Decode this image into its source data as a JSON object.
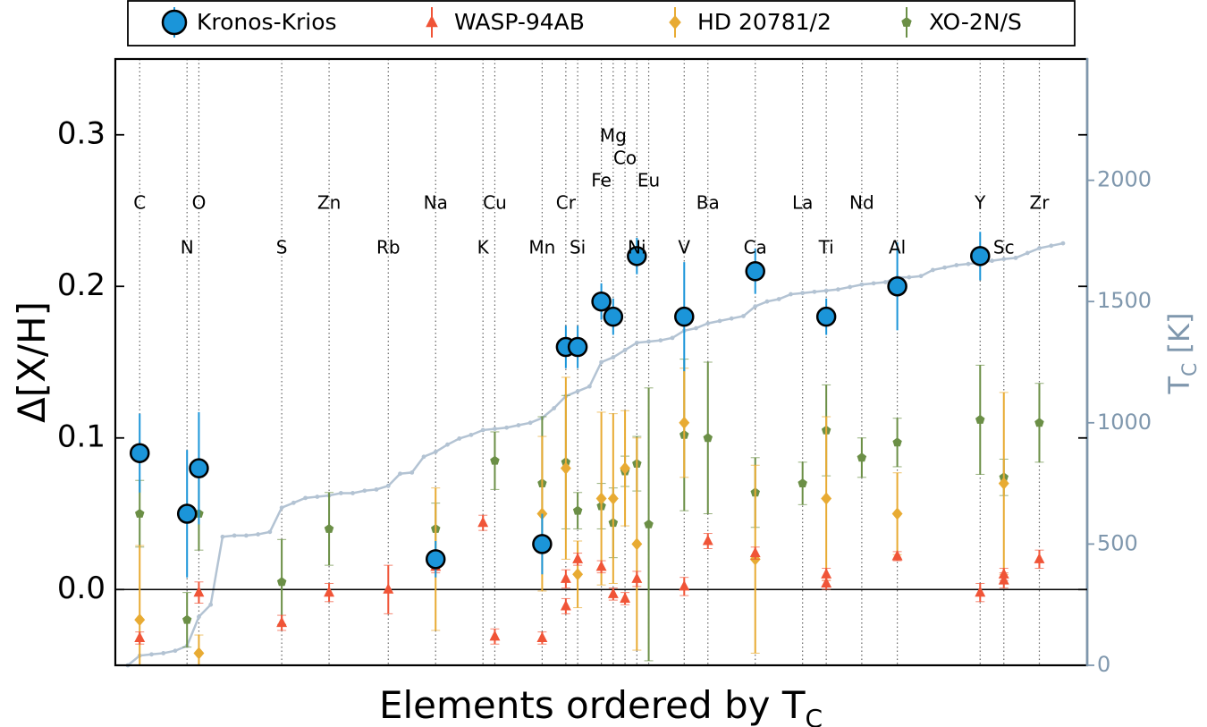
{
  "chart_data": {
    "type": "scatter",
    "xlabel_main": "Elements ordered by T",
    "xlabel_sub": "C",
    "ylabel": "Δ[X/H]",
    "y2label_main": "T",
    "y2label_sub": "C",
    "y2label_unit": " [K]",
    "ylim": [
      -0.05,
      0.35
    ],
    "y_ticks": [
      0.0,
      0.1,
      0.2,
      0.3
    ],
    "y_tick_labels": [
      "0.0",
      "0.1",
      "0.2",
      "0.3"
    ],
    "y2lim": [
      0,
      2500
    ],
    "y2_ticks": [
      0,
      500,
      1000,
      1500,
      2000
    ],
    "y2_tick_labels": [
      "0",
      "500",
      "1000",
      "1500",
      "2000"
    ],
    "legend_position": "top",
    "elements": [
      {
        "name": "C",
        "x": 2,
        "row": 1
      },
      {
        "name": "N",
        "x": 6,
        "row": 2
      },
      {
        "name": "O",
        "x": 7,
        "row": 1
      },
      {
        "name": "S",
        "x": 14,
        "row": 2
      },
      {
        "name": "Zn",
        "x": 18,
        "row": 1
      },
      {
        "name": "Rb",
        "x": 23,
        "row": 2
      },
      {
        "name": "Na",
        "x": 27,
        "row": 1
      },
      {
        "name": "K",
        "x": 31,
        "row": 2
      },
      {
        "name": "Cu",
        "x": 32,
        "row": 1
      },
      {
        "name": "Mn",
        "x": 36,
        "row": 2
      },
      {
        "name": "Cr",
        "x": 38,
        "row": 1
      },
      {
        "name": "Si",
        "x": 39,
        "row": 2
      },
      {
        "name": "Fe",
        "x": 41,
        "row": 0.5
      },
      {
        "name": "Mg",
        "x": 42,
        "row": -0.5
      },
      {
        "name": "Co",
        "x": 43,
        "row": 0
      },
      {
        "name": "Ni",
        "x": 44,
        "row": 2
      },
      {
        "name": "Eu",
        "x": 45,
        "row": 0.5
      },
      {
        "name": "V",
        "x": 48,
        "row": 2
      },
      {
        "name": "Ba",
        "x": 50,
        "row": 1
      },
      {
        "name": "Ca",
        "x": 54,
        "row": 2
      },
      {
        "name": "La",
        "x": 58,
        "row": 1
      },
      {
        "name": "Ti",
        "x": 60,
        "row": 2
      },
      {
        "name": "Nd",
        "x": 63,
        "row": 1
      },
      {
        "name": "Al",
        "x": 66,
        "row": 2
      },
      {
        "name": "Y",
        "x": 73,
        "row": 1
      },
      {
        "name": "Sc",
        "x": 75,
        "row": 2
      },
      {
        "name": "Zr",
        "x": 78,
        "row": 1
      }
    ],
    "tc_curve": {
      "color": "#b3c3d3",
      "x": [
        1,
        2,
        3,
        4,
        5,
        6,
        7,
        8,
        9,
        10,
        11,
        12,
        13,
        14,
        15,
        16,
        17,
        18,
        19,
        20,
        21,
        22,
        23,
        24,
        25,
        26,
        27,
        28,
        29,
        30,
        31,
        32,
        33,
        34,
        35,
        36,
        37,
        38,
        39,
        40,
        41,
        42,
        43,
        44,
        45,
        46,
        47,
        48,
        49,
        50,
        51,
        52,
        53,
        54,
        55,
        56,
        57,
        58,
        59,
        60,
        61,
        62,
        63,
        64,
        65,
        66,
        67,
        68,
        69,
        70,
        71,
        72,
        73,
        74,
        75,
        76,
        77,
        78,
        79,
        80
      ],
      "y": [
        0,
        40,
        45,
        50,
        60,
        80,
        200,
        250,
        530,
        535,
        535,
        540,
        550,
        650,
        670,
        690,
        695,
        700,
        710,
        710,
        720,
        725,
        740,
        790,
        795,
        860,
        880,
        910,
        935,
        950,
        970,
        975,
        980,
        990,
        1000,
        1020,
        1060,
        1110,
        1130,
        1150,
        1250,
        1270,
        1300,
        1330,
        1335,
        1340,
        1350,
        1380,
        1390,
        1410,
        1420,
        1430,
        1440,
        1480,
        1500,
        1510,
        1530,
        1535,
        1540,
        1545,
        1550,
        1560,
        1570,
        1575,
        1580,
        1600,
        1600,
        1605,
        1630,
        1640,
        1650,
        1655,
        1660,
        1668,
        1675,
        1680,
        1700,
        1720,
        1730,
        1740
      ]
    },
    "series": [
      {
        "name": "Kronos-Krios",
        "color": "#1b95d9",
        "marker": "circle",
        "points": [
          {
            "x": 2,
            "y": 0.09,
            "err": 0.026
          },
          {
            "x": 6,
            "y": 0.05,
            "err": 0.042
          },
          {
            "x": 7,
            "y": 0.08,
            "err": 0.037
          },
          {
            "x": 27,
            "y": 0.02,
            "err": 0.012
          },
          {
            "x": 36,
            "y": 0.03,
            "err": 0.02
          },
          {
            "x": 38,
            "y": 0.16,
            "err": 0.014
          },
          {
            "x": 39,
            "y": 0.16,
            "err": 0.014
          },
          {
            "x": 41,
            "y": 0.19,
            "err": 0.012
          },
          {
            "x": 42,
            "y": 0.18,
            "err": 0.012
          },
          {
            "x": 44,
            "y": 0.22,
            "err": 0.012
          },
          {
            "x": 48,
            "y": 0.18,
            "err": 0.036
          },
          {
            "x": 54,
            "y": 0.21,
            "err": 0.015
          },
          {
            "x": 60,
            "y": 0.18,
            "err": 0.012
          },
          {
            "x": 66,
            "y": 0.2,
            "err": 0.029
          },
          {
            "x": 73,
            "y": 0.22,
            "err": 0.016
          }
        ]
      },
      {
        "name": "WASP-94AB",
        "color": "#f05437",
        "marker": "triangle",
        "points": [
          {
            "x": 2,
            "y": -0.032,
            "err": 0.004
          },
          {
            "x": 7,
            "y": -0.002,
            "err": 0.007
          },
          {
            "x": 14,
            "y": -0.022,
            "err": 0.005
          },
          {
            "x": 18,
            "y": -0.002,
            "err": 0.006
          },
          {
            "x": 23,
            "y": 0.0,
            "err": 0.016
          },
          {
            "x": 27,
            "y": 0.015,
            "err": 0.004
          },
          {
            "x": 31,
            "y": 0.044,
            "err": 0.005
          },
          {
            "x": 32,
            "y": -0.031,
            "err": 0.005
          },
          {
            "x": 36,
            "y": -0.032,
            "err": 0.004
          },
          {
            "x": 38,
            "y": 0.007,
            "err": 0.006
          },
          {
            "x": 38.1,
            "y": -0.011,
            "err": 0.005
          },
          {
            "x": 39,
            "y": 0.02,
            "err": 0.004
          },
          {
            "x": 41,
            "y": 0.015,
            "err": 0.004
          },
          {
            "x": 42,
            "y": -0.003,
            "err": 0.004
          },
          {
            "x": 43,
            "y": -0.006,
            "err": 0.004
          },
          {
            "x": 44,
            "y": 0.007,
            "err": 0.005
          },
          {
            "x": 48,
            "y": 0.002,
            "err": 0.006
          },
          {
            "x": 50,
            "y": 0.032,
            "err": 0.005
          },
          {
            "x": 54,
            "y": 0.024,
            "err": 0.004
          },
          {
            "x": 60,
            "y": 0.004,
            "err": 0.004
          },
          {
            "x": 60.1,
            "y": 0.01,
            "err": 0.004
          },
          {
            "x": 66,
            "y": 0.022,
            "err": 0.003
          },
          {
            "x": 73,
            "y": -0.002,
            "err": 0.006
          },
          {
            "x": 75,
            "y": 0.01,
            "err": 0.004
          },
          {
            "x": 75.1,
            "y": 0.006,
            "err": 0.005
          },
          {
            "x": 78,
            "y": 0.02,
            "err": 0.006
          }
        ]
      },
      {
        "name": "HD 20781/2",
        "color": "#e8ab33",
        "marker": "diamond",
        "points": [
          {
            "x": 2,
            "y": -0.02,
            "err": 0.049
          },
          {
            "x": 7,
            "y": -0.042,
            "err": 0.012
          },
          {
            "x": 27,
            "y": 0.02,
            "err": 0.047
          },
          {
            "x": 36,
            "y": 0.05,
            "err": 0.051
          },
          {
            "x": 38,
            "y": 0.08,
            "err": 0.06
          },
          {
            "x": 39,
            "y": 0.01,
            "err": 0.022
          },
          {
            "x": 41,
            "y": 0.06,
            "err": 0.057
          },
          {
            "x": 42,
            "y": 0.06,
            "err": 0.056
          },
          {
            "x": 43,
            "y": 0.08,
            "err": 0.038
          },
          {
            "x": 44,
            "y": 0.03,
            "err": 0.07
          },
          {
            "x": 48,
            "y": 0.11,
            "err": 0.036
          },
          {
            "x": 54,
            "y": 0.02,
            "err": 0.062
          },
          {
            "x": 60,
            "y": 0.06,
            "err": 0.054
          },
          {
            "x": 66,
            "y": 0.05,
            "err": 0.027
          },
          {
            "x": 75,
            "y": 0.07,
            "err": 0.06
          }
        ]
      },
      {
        "name": "XO-2N/S",
        "color": "#6b8f46",
        "marker": "pentagon",
        "points": [
          {
            "x": 2,
            "y": 0.05,
            "err": 0.022
          },
          {
            "x": 6,
            "y": -0.02,
            "err": 0.018
          },
          {
            "x": 7,
            "y": 0.05,
            "err": 0.024
          },
          {
            "x": 14,
            "y": 0.005,
            "err": 0.028
          },
          {
            "x": 18,
            "y": 0.04,
            "err": 0.024
          },
          {
            "x": 27,
            "y": 0.04,
            "err": 0.017
          },
          {
            "x": 32,
            "y": 0.085,
            "err": 0.019
          },
          {
            "x": 36,
            "y": 0.07,
            "err": 0.044
          },
          {
            "x": 38,
            "y": 0.084,
            "err": 0.044
          },
          {
            "x": 39,
            "y": 0.052,
            "err": 0.012
          },
          {
            "x": 41,
            "y": 0.055,
            "err": 0.015
          },
          {
            "x": 42,
            "y": 0.044,
            "err": 0.023
          },
          {
            "x": 43,
            "y": 0.078,
            "err": 0.01
          },
          {
            "x": 44,
            "y": 0.083,
            "err": 0.018
          },
          {
            "x": 45,
            "y": 0.043,
            "err": 0.09
          },
          {
            "x": 48,
            "y": 0.102,
            "err": 0.05
          },
          {
            "x": 50,
            "y": 0.1,
            "err": 0.05
          },
          {
            "x": 54,
            "y": 0.064,
            "err": 0.023
          },
          {
            "x": 58,
            "y": 0.07,
            "err": 0.014
          },
          {
            "x": 60,
            "y": 0.105,
            "err": 0.03
          },
          {
            "x": 63,
            "y": 0.087,
            "err": 0.013
          },
          {
            "x": 66,
            "y": 0.097,
            "err": 0.016
          },
          {
            "x": 73,
            "y": 0.112,
            "err": 0.036
          },
          {
            "x": 75,
            "y": 0.074,
            "err": 0.012
          },
          {
            "x": 78,
            "y": 0.11,
            "err": 0.026
          }
        ]
      }
    ]
  }
}
